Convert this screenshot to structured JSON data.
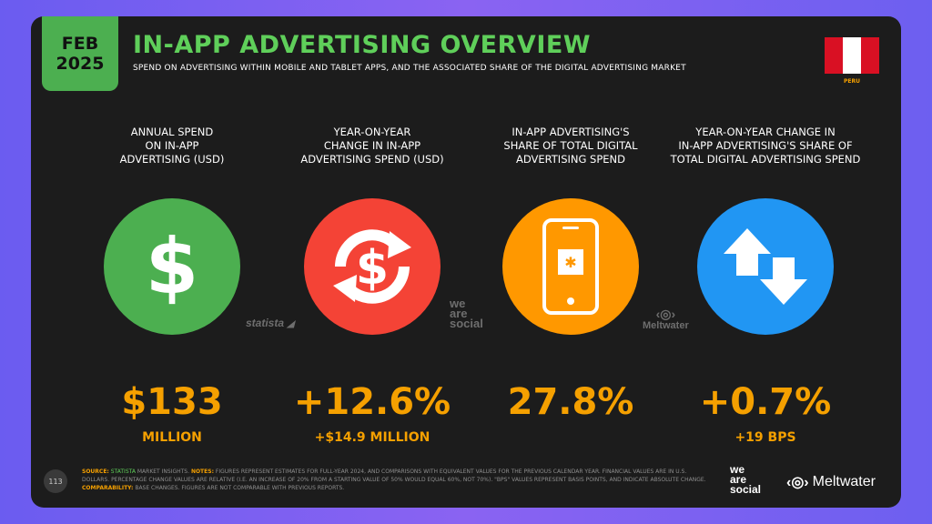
{
  "header": {
    "month": "FEB",
    "year": "2025",
    "title": "IN-APP ADVERTISING OVERVIEW",
    "subtitle": "SPEND ON ADVERTISING WITHIN MOBILE AND TABLET APPS, AND THE ASSOCIATED SHARE OF THE DIGITAL ADVERTISING MARKET",
    "country": "PERU"
  },
  "colors": {
    "green": "#4caf50",
    "red": "#f44336",
    "orange": "#ff9800",
    "blue": "#2196f3",
    "accent": "#f5a000"
  },
  "metrics": [
    {
      "label_lines": [
        "ANNUAL SPEND",
        "ON IN-APP",
        "ADVERTISING (USD)"
      ],
      "icon": "dollar-icon",
      "value": "$133",
      "sub": "MILLION"
    },
    {
      "label_lines": [
        "YEAR-ON-YEAR",
        "CHANGE IN IN-APP",
        "ADVERTISING SPEND (USD)"
      ],
      "icon": "dollar-cycle-icon",
      "value": "+12.6%",
      "sub": "+$14.9 MILLION"
    },
    {
      "label_lines": [
        "IN-APP ADVERTISING'S",
        "SHARE OF TOTAL DIGITAL",
        "ADVERTISING SPEND"
      ],
      "icon": "smartphone-icon",
      "value": "27.8%",
      "sub": ""
    },
    {
      "label_lines": [
        "YEAR-ON-YEAR CHANGE IN",
        "IN-APP ADVERTISING'S SHARE OF",
        "TOTAL DIGITAL ADVERTISING SPEND"
      ],
      "icon": "up-down-arrows-icon",
      "value": "+0.7%",
      "sub": "+19 BPS"
    }
  ],
  "watermarks": {
    "statista": "statista",
    "wearesocial": [
      "we",
      "are",
      "social"
    ],
    "meltwater": "Meltwater"
  },
  "footer": {
    "page": "113",
    "source_label": "SOURCE:",
    "source_name": "STATISTA",
    "source_rest": "MARKET INSIGHTS.",
    "notes_label": "NOTES:",
    "notes_text": "FIGURES REPRESENT ESTIMATES FOR FULL-YEAR 2024, AND COMPARISONS WITH EQUIVALENT VALUES FOR THE PREVIOUS CALENDAR YEAR. FINANCIAL VALUES ARE IN U.S. DOLLARS. PERCENTAGE CHANGE VALUES ARE RELATIVE (I.E. AN INCREASE OF 20% FROM A STARTING VALUE OF 50% WOULD EQUAL 60%, NOT 70%). \"BPS\" VALUES REPRESENT BASIS POINTS, AND INDICATE ABSOLUTE CHANGE.",
    "comparability_label": "COMPARABILITY:",
    "comparability_text": "BASE CHANGES. FIGURES ARE NOT COMPARABLE WITH PREVIOUS REPORTS.",
    "brand_was": [
      "we",
      "are",
      "social"
    ],
    "brand_mw": "Meltwater"
  }
}
